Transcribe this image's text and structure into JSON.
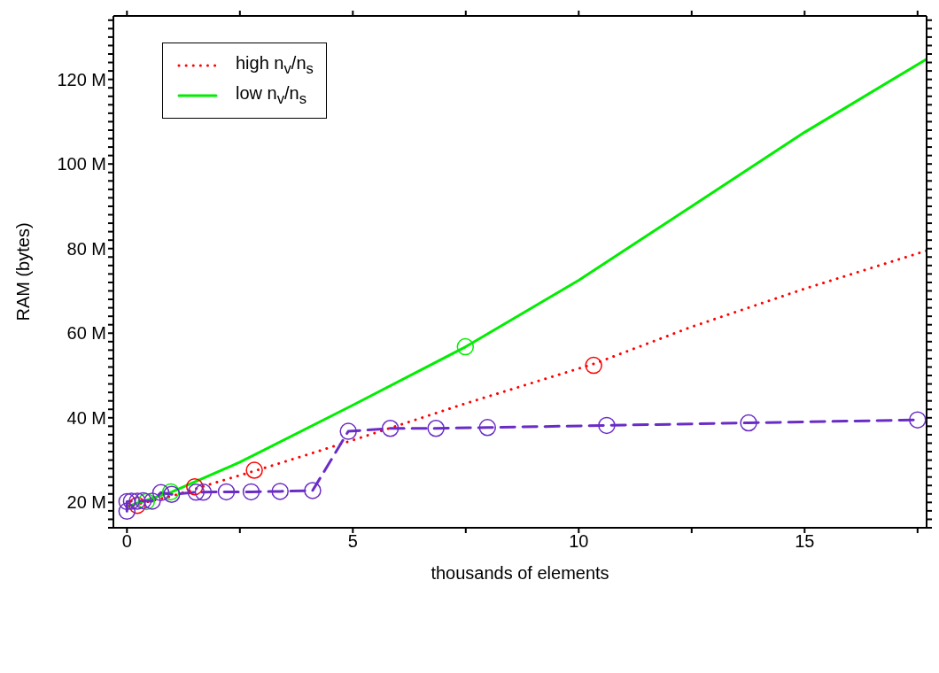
{
  "chart_data": {
    "type": "line",
    "xlabel": "thousands of elements",
    "ylabel": "RAM (bytes)",
    "xlim": [
      -0.3,
      17.7
    ],
    "ylim": [
      14,
      135
    ],
    "xticks": [
      0,
      {
        "value": 2.5,
        "label": null
      },
      5,
      {
        "value": 7.5,
        "label": null
      },
      10,
      {
        "value": 12.5,
        "label": null
      },
      15,
      {
        "value": 17.5,
        "label": null
      }
    ],
    "yticks": [
      {
        "value": 14,
        "label": null
      },
      {
        "value": 16,
        "label": null
      },
      {
        "value": 18,
        "label": null
      },
      {
        "value": 20,
        "label": "20 M"
      },
      {
        "value": 22,
        "label": null
      },
      {
        "value": 24,
        "label": null
      },
      {
        "value": 26,
        "label": null
      },
      {
        "value": 28,
        "label": null
      },
      {
        "value": 30,
        "label": null
      },
      {
        "value": 32,
        "label": null
      },
      {
        "value": 34,
        "label": null
      },
      {
        "value": 36,
        "label": null
      },
      {
        "value": 38,
        "label": null
      },
      {
        "value": 40,
        "label": "40 M"
      },
      {
        "value": 42,
        "label": null
      },
      {
        "value": 44,
        "label": null
      },
      {
        "value": 46,
        "label": null
      },
      {
        "value": 48,
        "label": null
      },
      {
        "value": 50,
        "label": null
      },
      {
        "value": 52,
        "label": null
      },
      {
        "value": 54,
        "label": null
      },
      {
        "value": 56,
        "label": null
      },
      {
        "value": 58,
        "label": null
      },
      {
        "value": 60,
        "label": "60 M"
      },
      {
        "value": 62,
        "label": null
      },
      {
        "value": 64,
        "label": null
      },
      {
        "value": 66,
        "label": null
      },
      {
        "value": 68,
        "label": null
      },
      {
        "value": 70,
        "label": null
      },
      {
        "value": 72,
        "label": null
      },
      {
        "value": 74,
        "label": null
      },
      {
        "value": 76,
        "label": null
      },
      {
        "value": 78,
        "label": null
      },
      {
        "value": 80,
        "label": "80 M"
      },
      {
        "value": 82,
        "label": null
      },
      {
        "value": 84,
        "label": null
      },
      {
        "value": 86,
        "label": null
      },
      {
        "value": 88,
        "label": null
      },
      {
        "value": 90,
        "label": null
      },
      {
        "value": 92,
        "label": null
      },
      {
        "value": 94,
        "label": null
      },
      {
        "value": 96,
        "label": null
      },
      {
        "value": 98,
        "label": null
      },
      {
        "value": 100,
        "label": "100 M"
      },
      {
        "value": 102,
        "label": null
      },
      {
        "value": 104,
        "label": null
      },
      {
        "value": 106,
        "label": null
      },
      {
        "value": 108,
        "label": null
      },
      {
        "value": 110,
        "label": null
      },
      {
        "value": 112,
        "label": null
      },
      {
        "value": 114,
        "label": null
      },
      {
        "value": 116,
        "label": null
      },
      {
        "value": 118,
        "label": null
      },
      {
        "value": 120,
        "label": "120 M"
      },
      {
        "value": 122,
        "label": null
      },
      {
        "value": 124,
        "label": null
      },
      {
        "value": 126,
        "label": null
      },
      {
        "value": 128,
        "label": null
      },
      {
        "value": 130,
        "label": null
      },
      {
        "value": 132,
        "label": null
      },
      {
        "value": 134,
        "label": null
      }
    ],
    "grid": false,
    "legend": "top left",
    "series": [
      {
        "name": "high n$_{v}$/n$_{s}$",
        "type": "line",
        "color": "#ff0000",
        "line_style": "dotted",
        "marker": "none",
        "x": [
          0,
          1,
          2,
          3,
          4,
          5,
          7.5,
          10.35,
          12.5,
          15,
          17.7
        ],
        "values": [
          19,
          21.5,
          24.8,
          28,
          31.3,
          34.7,
          43.4,
          52.8,
          61.5,
          70.5,
          79.5
        ]
      },
      {
        "type": "scatter",
        "color": "#ff0000",
        "marker": "circle",
        "x": [
          0.23,
          1.5,
          2.82,
          10.33
        ],
        "values": [
          19.3,
          23.7,
          27.6,
          52.4
        ]
      },
      {
        "name": "low n$_{v}$/n$_{s}$",
        "type": "line",
        "color": "#00ee00",
        "line_style": "solid",
        "marker": "none",
        "x": [
          0,
          1,
          2.5,
          5,
          7.5,
          10,
          12.5,
          15,
          17.7
        ],
        "values": [
          19,
          22.5,
          29.5,
          43,
          56.8,
          72.5,
          90,
          107.5,
          124.8
        ]
      },
      {
        "type": "scatter",
        "color": "#00ee00",
        "marker": "circle",
        "x": [
          0.43,
          0.97,
          7.49
        ],
        "values": [
          20.2,
          22.5,
          56.8
        ]
      },
      {
        "type": "line",
        "color": "#6a2cc6",
        "line_style": "dashed",
        "marker": "circle",
        "x": [
          0,
          0,
          0.1,
          0.23,
          0.36,
          0.56,
          0.75,
          0.99,
          1.53,
          1.69,
          2.2,
          2.75,
          3.39,
          4.11,
          4.9,
          5.83,
          6.84,
          7.98,
          10.62,
          13.76,
          17.5
        ],
        "values": [
          17.9,
          20.2,
          20.3,
          20.3,
          20.4,
          20.3,
          22.3,
          21.9,
          22.4,
          22.4,
          22.5,
          22.5,
          22.6,
          22.8,
          36.8,
          37.5,
          37.5,
          37.7,
          38.2,
          38.8,
          39.5
        ]
      }
    ]
  }
}
